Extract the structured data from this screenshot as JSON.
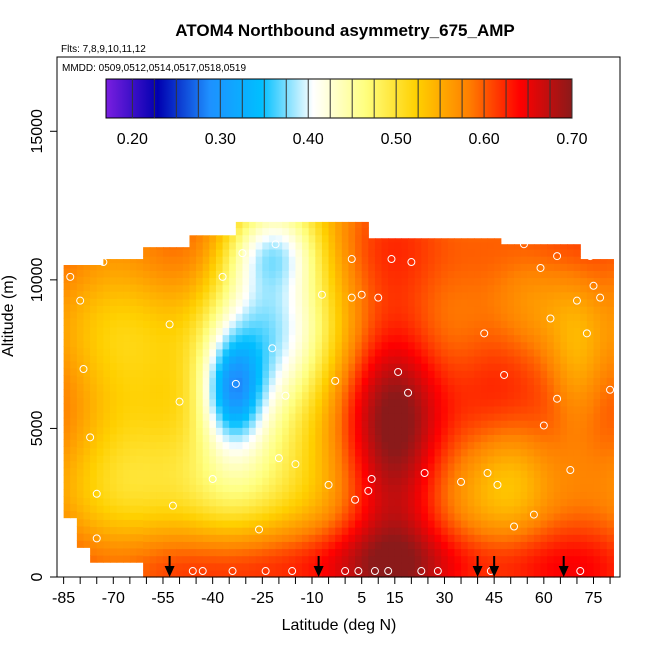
{
  "chart_data": {
    "type": "heatmap",
    "title": "ATOM4 Northbound asymmetry_675_AMP",
    "flights_note": "Flts: 7,8,9,10,11,12",
    "dates_note": "MMDD: 0509,0512,0514,0517,0518,0519",
    "xlabel": "Latitude (deg N)",
    "ylabel": "Altitude (m)",
    "xlim": [
      -87,
      83
    ],
    "ylim": [
      0,
      17500
    ],
    "x_ticks": [
      -85,
      -70,
      -55,
      -40,
      -25,
      -10,
      5,
      15,
      30,
      45,
      60,
      75
    ],
    "x_tick_labels": [
      "-85",
      "-70",
      "-55",
      "-40",
      "-25",
      "-10",
      "5",
      "15",
      "30",
      "45",
      "60",
      "75"
    ],
    "y_ticks": [
      0,
      5000,
      10000,
      15000
    ],
    "y_tick_labels": [
      "0",
      "5000",
      "10000",
      "15000"
    ],
    "colorbar": {
      "min": 0.17,
      "max": 0.7,
      "ticks": [
        0.2,
        0.3,
        0.4,
        0.5,
        0.6,
        0.7
      ],
      "tick_labels": [
        "0.20",
        "0.30",
        "0.40",
        "0.50",
        "0.60",
        "0.70"
      ],
      "colors": [
        "#7a1fe0",
        "#0000b0",
        "#1e90ff",
        "#00bfff",
        "#ffffff",
        "#ffff80",
        "#ffd000",
        "#ff8000",
        "#ff0000",
        "#8b1a1a"
      ]
    },
    "profile_arrow_latitudes": [
      -53,
      -8,
      40,
      45,
      66
    ],
    "sample_points": [
      [
        -83,
        10100
      ],
      [
        -80,
        9300
      ],
      [
        -79,
        7000
      ],
      [
        -77,
        4700
      ],
      [
        -75,
        2800
      ],
      [
        -75,
        1300
      ],
      [
        -73,
        10600
      ],
      [
        -53,
        8500
      ],
      [
        -52,
        2400
      ],
      [
        -50,
        5900
      ],
      [
        -46,
        200
      ],
      [
        -43,
        200
      ],
      [
        -40,
        3300
      ],
      [
        -37,
        10100
      ],
      [
        -34,
        200
      ],
      [
        -33,
        6500
      ],
      [
        -31,
        10900
      ],
      [
        -26,
        1600
      ],
      [
        -24,
        200
      ],
      [
        -22,
        7700
      ],
      [
        -21,
        11200
      ],
      [
        -20,
        4000
      ],
      [
        -18,
        6100
      ],
      [
        -16,
        200
      ],
      [
        -15,
        3800
      ],
      [
        -7,
        9500
      ],
      [
        -5,
        3100
      ],
      [
        -3,
        6600
      ],
      [
        0,
        200
      ],
      [
        2,
        9400
      ],
      [
        2,
        10700
      ],
      [
        3,
        2600
      ],
      [
        4,
        200
      ],
      [
        5,
        9500
      ],
      [
        7,
        2900
      ],
      [
        8,
        3300
      ],
      [
        9,
        200
      ],
      [
        10,
        9400
      ],
      [
        13,
        200
      ],
      [
        14,
        10700
      ],
      [
        16,
        6900
      ],
      [
        19,
        6200
      ],
      [
        20,
        10600
      ],
      [
        23,
        200
      ],
      [
        24,
        3500
      ],
      [
        28,
        200
      ],
      [
        35,
        3200
      ],
      [
        42,
        8200
      ],
      [
        43,
        3500
      ],
      [
        44,
        200
      ],
      [
        46,
        3100
      ],
      [
        48,
        6800
      ],
      [
        51,
        1700
      ],
      [
        54,
        11200
      ],
      [
        57,
        2100
      ],
      [
        59,
        10400
      ],
      [
        60,
        5100
      ],
      [
        62,
        8700
      ],
      [
        64,
        6000
      ],
      [
        64,
        10800
      ],
      [
        68,
        3600
      ],
      [
        70,
        9300
      ],
      [
        71,
        200
      ],
      [
        73,
        8200
      ],
      [
        74,
        10800
      ],
      [
        75,
        9800
      ],
      [
        77,
        9400
      ],
      [
        80,
        6300
      ]
    ]
  }
}
